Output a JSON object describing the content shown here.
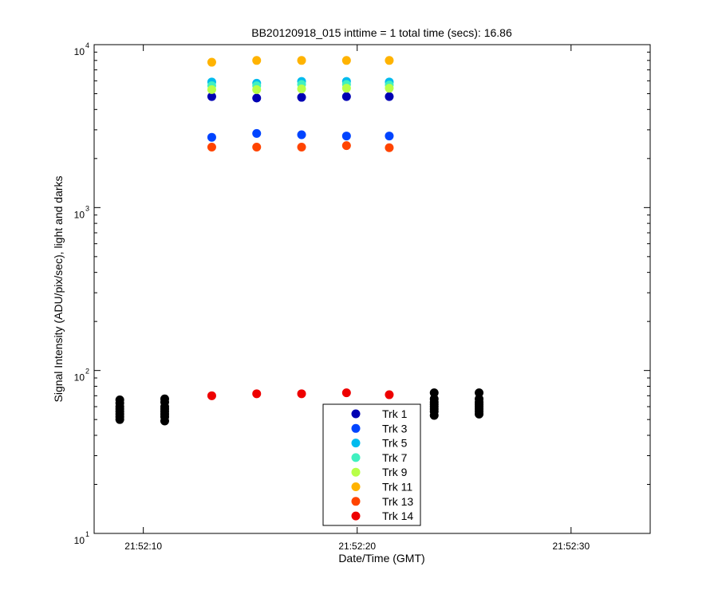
{
  "chart_data": {
    "type": "scatter",
    "title": "BB20120918_015 inttime = 1 total time (secs): 16.86",
    "xlabel": "Date/Time (GMT)",
    "ylabel": "Signal Intensity (ADU/pix/sec), light and darks",
    "yscale": "log",
    "ylim": [
      10,
      10000
    ],
    "xlim": [
      "21:52:07.7",
      "21:52:33.7"
    ],
    "grid": false,
    "legend_position": "bottom-center",
    "x_ticks": [
      {
        "t": "21:52:10",
        "base": "",
        "exp": ""
      },
      {
        "t": "21:52:20",
        "base": "",
        "exp": ""
      },
      {
        "t": "21:52:30",
        "base": "",
        "exp": ""
      }
    ],
    "y_ticks": [
      {
        "value": 10,
        "base": "10",
        "exp": "1"
      },
      {
        "value": 100,
        "base": "10",
        "exp": "2"
      },
      {
        "value": 1000,
        "base": "10",
        "exp": "3"
      },
      {
        "value": 10000,
        "base": "10",
        "exp": "4"
      }
    ],
    "x_tick_labels": [
      "21:52:10",
      "21:52:20",
      "21:52:30"
    ],
    "series": [
      {
        "name": "Trk 1",
        "color": "#0000b3",
        "x": [
          "21:52:13.2",
          "21:52:15.3",
          "21:52:17.4",
          "21:52:19.5",
          "21:52:21.5"
        ],
        "y": [
          4800,
          4700,
          4750,
          4800,
          4800
        ]
      },
      {
        "name": "Trk 3",
        "color": "#0044ff",
        "x": [
          "21:52:13.2",
          "21:52:15.3",
          "21:52:17.4",
          "21:52:19.5",
          "21:52:21.5"
        ],
        "y": [
          2700,
          2850,
          2800,
          2750,
          2750
        ]
      },
      {
        "name": "Trk 5",
        "color": "#00bbee",
        "x": [
          "21:52:13.2",
          "21:52:15.3",
          "21:52:17.4",
          "21:52:19.5",
          "21:52:21.5"
        ],
        "y": [
          5900,
          5800,
          5950,
          5950,
          5900
        ]
      },
      {
        "name": "Trk 7",
        "color": "#40f0c0",
        "x": [
          "21:52:13.2",
          "21:52:15.3",
          "21:52:17.4",
          "21:52:19.5",
          "21:52:21.5"
        ],
        "y": [
          5600,
          5600,
          5700,
          5700,
          5650
        ]
      },
      {
        "name": "Trk 9",
        "color": "#b8ff48",
        "x": [
          "21:52:13.2",
          "21:52:15.3",
          "21:52:17.4",
          "21:52:19.5",
          "21:52:21.5"
        ],
        "y": [
          5300,
          5300,
          5350,
          5400,
          5400
        ]
      },
      {
        "name": "Trk 11",
        "color": "#ffb300",
        "x": [
          "21:52:13.2",
          "21:52:15.3",
          "21:52:17.4",
          "21:52:19.5",
          "21:52:21.5"
        ],
        "y": [
          7800,
          8000,
          8000,
          8000,
          8000
        ]
      },
      {
        "name": "Trk 13",
        "color": "#ff4400",
        "x": [
          "21:52:13.2",
          "21:52:15.3",
          "21:52:17.4",
          "21:52:19.5",
          "21:52:21.5"
        ],
        "y": [
          2350,
          2350,
          2350,
          2400,
          2330
        ]
      },
      {
        "name": "Trk 14",
        "color": "#ee0000",
        "x": [
          "21:52:13.2",
          "21:52:15.3",
          "21:52:17.4",
          "21:52:19.5",
          "21:52:21.5"
        ],
        "y": [
          70,
          72,
          72,
          73,
          71
        ]
      }
    ],
    "dark_points": {
      "color": "#000000",
      "groups": [
        {
          "x": "21:52:08.9",
          "y": [
            50,
            52,
            54,
            56,
            58,
            60,
            63,
            66
          ]
        },
        {
          "x": "21:52:11.0",
          "y": [
            49,
            52,
            54,
            56,
            58,
            60,
            64,
            67
          ]
        },
        {
          "x": "21:52:23.6",
          "y": [
            53,
            56,
            58,
            60,
            62,
            64,
            67,
            73
          ]
        },
        {
          "x": "21:52:25.7",
          "y": [
            54,
            56,
            58,
            60,
            62,
            64,
            67,
            73
          ]
        }
      ]
    }
  }
}
